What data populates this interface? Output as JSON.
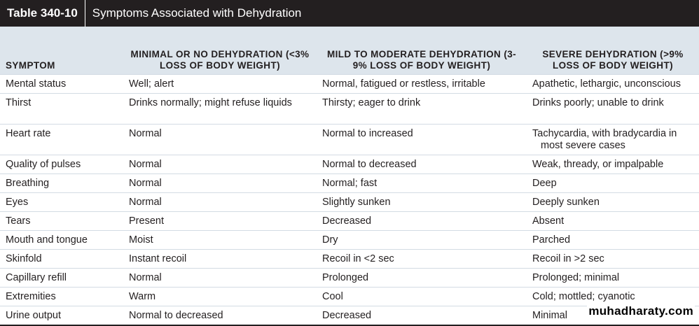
{
  "header": {
    "label": "Table 340-10",
    "title": "Symptoms Associated with Dehydration"
  },
  "table": {
    "columns": [
      "SYMPTOM",
      "MINIMAL OR NO DEHYDRATION (<3% LOSS OF BODY WEIGHT)",
      "MILD TO MODERATE DEHYDRATION (3-9% LOSS OF BODY WEIGHT)",
      "SEVERE DEHYDRATION (>9% LOSS OF BODY WEIGHT)"
    ],
    "rows": [
      [
        "Mental status",
        "Well; alert",
        "Normal, fatigued or restless, irritable",
        "Apathetic, lethargic, unconscious"
      ],
      [
        "Thirst",
        "Drinks normally; might refuse liquids",
        "Thirsty; eager to drink",
        "Drinks poorly; unable to drink"
      ],
      [
        "Heart rate",
        "Normal",
        "Normal to increased",
        "Tachycardia, with bradycardia in most severe cases"
      ],
      [
        "Quality of pulses",
        "Normal",
        "Normal to decreased",
        "Weak, thready, or impalpable"
      ],
      [
        "Breathing",
        "Normal",
        "Normal; fast",
        "Deep"
      ],
      [
        "Eyes",
        "Normal",
        "Slightly sunken",
        "Deeply sunken"
      ],
      [
        "Tears",
        "Present",
        "Decreased",
        "Absent"
      ],
      [
        "Mouth and tongue",
        "Moist",
        "Dry",
        "Parched"
      ],
      [
        "Skinfold",
        "Instant recoil",
        "Recoil in <2 sec",
        "Recoil in >2 sec"
      ],
      [
        "Capillary refill",
        "Normal",
        "Prolonged",
        "Prolonged; minimal"
      ],
      [
        "Extremities",
        "Warm",
        "Cool",
        "Cold; mottled; cyanotic"
      ],
      [
        "Urine output",
        "Normal to decreased",
        "Decreased",
        "Minimal"
      ]
    ]
  },
  "watermark": "muhadharaty.com"
}
